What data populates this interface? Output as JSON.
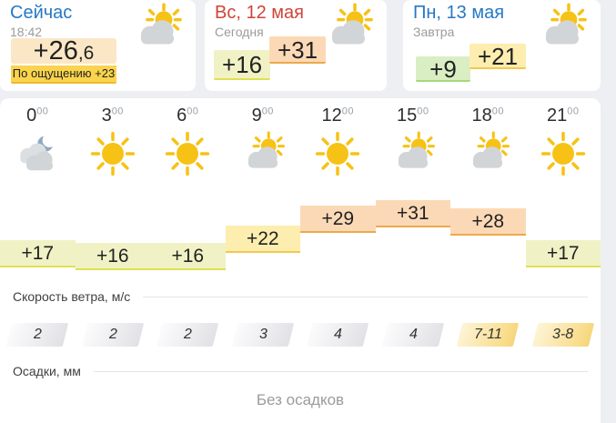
{
  "palette": {
    "background": "#edeff2",
    "link_blue": "#2579c4",
    "sunday_red": "#ce4537",
    "now_temp_bg": "#fbe7c6",
    "feels_bg": "#fbd44d",
    "sun_yellow": "#f7c216",
    "cloud_gray": "#d2d5d8",
    "moon_blue": "#8ea9c3",
    "tiers": {
      "mild": {
        "bg": "#f0f2c6",
        "border": "#dfe053"
      },
      "warm": {
        "bg": "#fdedae",
        "border": "#f0c94f"
      },
      "hot": {
        "bg": "#fcd9b6",
        "border": "#eda94a"
      },
      "cool": {
        "bg": "#d9efc3",
        "border": "#a5d87c"
      }
    }
  },
  "cards": {
    "now": {
      "title": "Сейчас",
      "time": "18:42",
      "temp_int": "+26",
      "temp_frac": ",6",
      "feels": "По ощущению +23",
      "icon": "sun-cloud"
    },
    "days": [
      {
        "date": "Вс, 12 мая",
        "subtitle": "Сегодня",
        "min": "+16",
        "max": "+31",
        "min_tier": "mild",
        "max_tier": "hot",
        "date_color": "#ce4537",
        "icon": "sun-cloud"
      },
      {
        "date": "Пн, 13 мая",
        "subtitle": "Завтра",
        "min": "+9",
        "max": "+21",
        "min_tier": "cool",
        "max_tier": "warm",
        "date_color": "#2579c4",
        "icon": "sun-cloud"
      }
    ]
  },
  "hourly": {
    "hours": [
      {
        "hour": "0",
        "sup": "00",
        "icon": "moon-cloud",
        "temp": 17,
        "temp_label": "+17",
        "wind": "2",
        "wind_tone": "gray"
      },
      {
        "hour": "3",
        "sup": "00",
        "icon": "sun",
        "temp": 16,
        "temp_label": "+16",
        "wind": "2",
        "wind_tone": "gray"
      },
      {
        "hour": "6",
        "sup": "00",
        "icon": "sun",
        "temp": 16,
        "temp_label": "+16",
        "wind": "2",
        "wind_tone": "gray"
      },
      {
        "hour": "9",
        "sup": "00",
        "icon": "sun-cloud",
        "temp": 22,
        "temp_label": "+22",
        "wind": "3",
        "wind_tone": "gray"
      },
      {
        "hour": "12",
        "sup": "00",
        "icon": "sun",
        "temp": 29,
        "temp_label": "+29",
        "wind": "4",
        "wind_tone": "gray"
      },
      {
        "hour": "15",
        "sup": "00",
        "icon": "sun-cloud",
        "temp": 31,
        "temp_label": "+31",
        "wind": "4",
        "wind_tone": "gray"
      },
      {
        "hour": "18",
        "sup": "00",
        "icon": "sun-cloud",
        "temp": 28,
        "temp_label": "+28",
        "wind": "7-11",
        "wind_tone": "yellow"
      },
      {
        "hour": "21",
        "sup": "00",
        "icon": "sun",
        "temp": 17,
        "temp_label": "+17",
        "wind": "3-8",
        "wind_tone": "yellow"
      }
    ],
    "wind_section_label": "Скорость ветра, м/с",
    "precip_section_label": "Осадки, мм",
    "precip_value": "Без осадков"
  }
}
